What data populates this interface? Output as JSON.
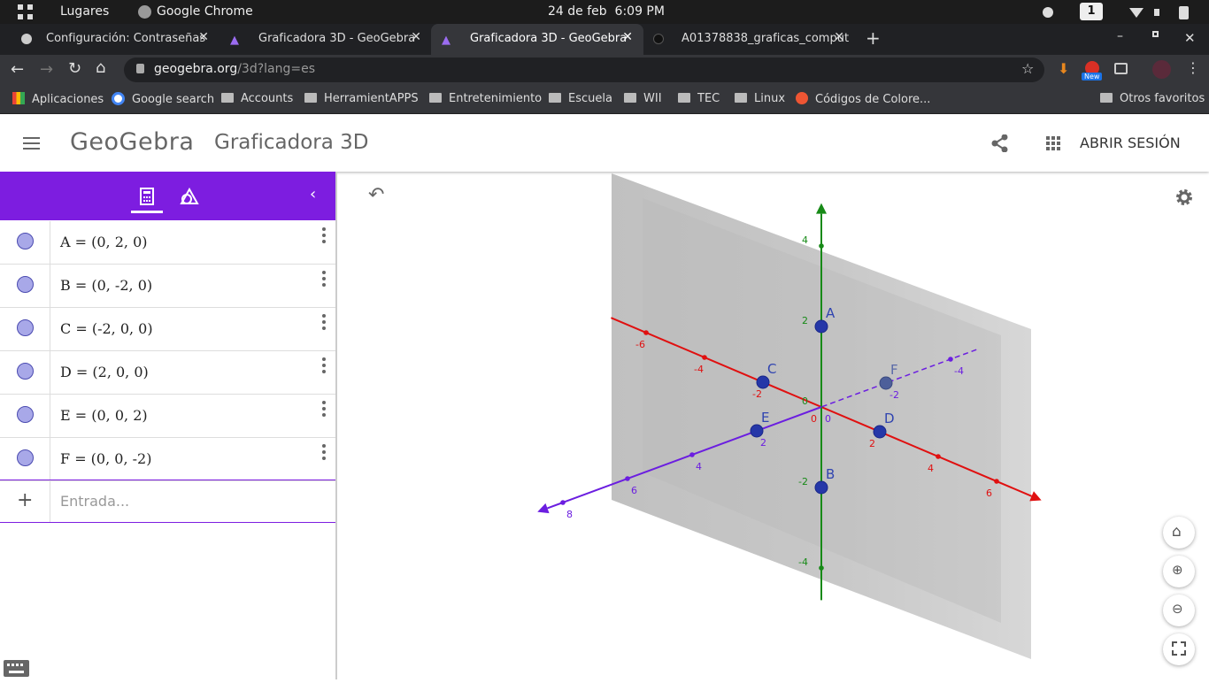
{
  "system_bar": {
    "places": "Lugares",
    "app": "Google Chrome",
    "datetime": "24 de feb  6:09 PM",
    "workspace": "1"
  },
  "tabs": [
    "Configuración: Contraseñas",
    "Graficadora 3D - GeoGebra",
    "Graficadora 3D - GeoGebra",
    "A01378838_graficas_comput"
  ],
  "address": {
    "host": "geogebra.org",
    "path": "/3d?lang=es",
    "badge": "New"
  },
  "bookmarks": [
    "Aplicaciones",
    "Google search",
    "Accounts",
    "HerramientAPPS",
    "Entretenimiento",
    "Escuela",
    "WII",
    "TEC",
    "Linux",
    "Códigos de Colore..."
  ],
  "other_bookmarks": "Otros favoritos",
  "header": {
    "logo": "GeoGebra",
    "title": "Graficadora 3D",
    "sign_in": "ABRIR SESIÓN"
  },
  "algebra": {
    "items": [
      "A = (0, 2, 0)",
      "B = (0, -2, 0)",
      "C = (-2, 0, 0)",
      "D = (2, 0, 0)",
      "E = (0, 0, 2)",
      "F = (0, 0, -2)"
    ],
    "input_placeholder": "Entrada..."
  },
  "graphics": {
    "axes": [
      {
        "color": "#e01010",
        "ticks": [
          -6,
          -4,
          -2,
          0,
          2,
          4,
          6
        ]
      },
      {
        "color": "#178a17",
        "ticks": [
          -4,
          -2,
          0,
          2,
          4
        ]
      },
      {
        "color": "#6b1ee0",
        "ticks": [
          -4,
          -2,
          0,
          2,
          4,
          6,
          8
        ]
      }
    ],
    "points": [
      {
        "label": "A",
        "coords": [
          0,
          2,
          0
        ]
      },
      {
        "label": "B",
        "coords": [
          0,
          -2,
          0
        ]
      },
      {
        "label": "C",
        "coords": [
          -2,
          0,
          0
        ]
      },
      {
        "label": "D",
        "coords": [
          2,
          0,
          0
        ]
      },
      {
        "label": "E",
        "coords": [
          0,
          0,
          2
        ]
      },
      {
        "label": "F",
        "coords": [
          0,
          0,
          -2
        ]
      }
    ]
  }
}
